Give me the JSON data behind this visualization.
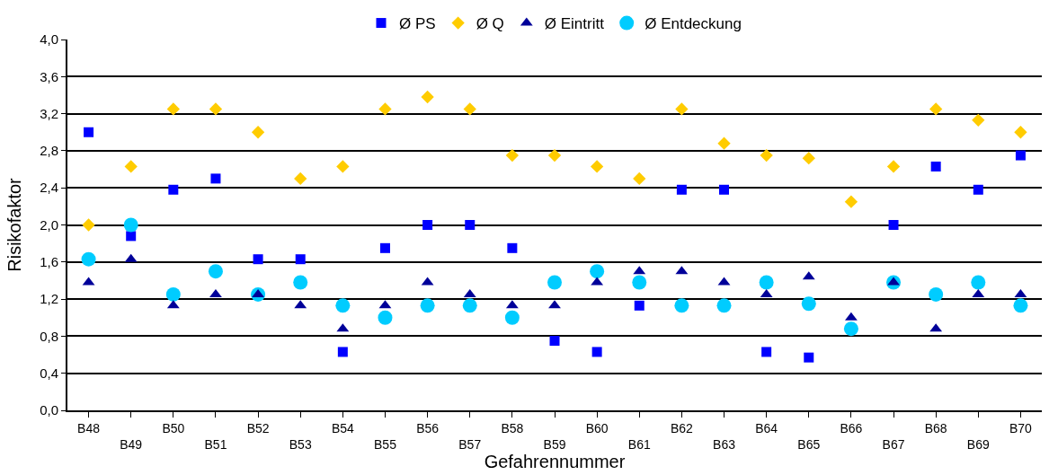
{
  "chart_data": {
    "type": "scatter",
    "xlabel": "Gefahrennummer",
    "ylabel": "Risikofaktor",
    "categories": [
      "B48",
      "B49",
      "B50",
      "B51",
      "B52",
      "B53",
      "B54",
      "B55",
      "B56",
      "B57",
      "B58",
      "B59",
      "B60",
      "B61",
      "B62",
      "B63",
      "B64",
      "B65",
      "B66",
      "B67",
      "B68",
      "B69",
      "B70"
    ],
    "series": [
      {
        "name": "Ø PS",
        "color": "#0000ff",
        "marker": "square",
        "values": [
          3.0,
          1.88,
          2.38,
          2.5,
          1.63,
          1.63,
          0.63,
          1.75,
          2.0,
          2.0,
          1.75,
          0.75,
          0.63,
          1.13,
          2.38,
          2.38,
          0.63,
          0.57,
          null,
          2.0,
          2.63,
          2.38,
          2.75
        ]
      },
      {
        "name": "Ø Q",
        "color": "#ffcc00",
        "marker": "diamond",
        "values": [
          2.0,
          2.63,
          3.25,
          3.25,
          3.0,
          2.5,
          2.63,
          3.25,
          3.38,
          3.25,
          2.75,
          2.75,
          2.63,
          2.5,
          3.25,
          2.88,
          2.75,
          2.72,
          2.25,
          2.63,
          3.25,
          3.13,
          3.0
        ]
      },
      {
        "name": "Ø Eintritt",
        "color": "#000099",
        "marker": "triangle",
        "values": [
          1.38,
          1.63,
          1.13,
          1.25,
          1.25,
          1.13,
          0.88,
          1.13,
          1.38,
          1.25,
          1.13,
          1.13,
          1.38,
          1.5,
          1.5,
          1.38,
          1.25,
          1.44,
          1.0,
          1.38,
          0.88,
          1.25,
          1.25
        ]
      },
      {
        "name": "Ø Entdeckung",
        "color": "#00ccff",
        "marker": "circle",
        "values": [
          1.63,
          2.0,
          1.25,
          1.5,
          1.25,
          1.38,
          1.13,
          1.0,
          1.13,
          1.13,
          1.0,
          1.38,
          1.5,
          1.38,
          1.13,
          1.13,
          1.38,
          1.15,
          0.88,
          1.38,
          1.25,
          1.38,
          1.13
        ]
      }
    ],
    "ylim": [
      0,
      4.0
    ],
    "yticks": [
      {
        "value": 0,
        "label": "0,0"
      },
      {
        "value": 0.4,
        "label": "0,4"
      },
      {
        "value": 0.8,
        "label": "0,8"
      },
      {
        "value": 1.2,
        "label": "1,2"
      },
      {
        "value": 1.6,
        "label": "1,6"
      },
      {
        "value": 2.0,
        "label": "2,0"
      },
      {
        "value": 2.4,
        "label": "2,4"
      },
      {
        "value": 2.8,
        "label": "2,8"
      },
      {
        "value": 3.2,
        "label": "3,2"
      },
      {
        "value": 3.6,
        "label": "3,6"
      },
      {
        "value": 4.0,
        "label": "4,0"
      }
    ],
    "grid": "y",
    "legend": "top"
  }
}
